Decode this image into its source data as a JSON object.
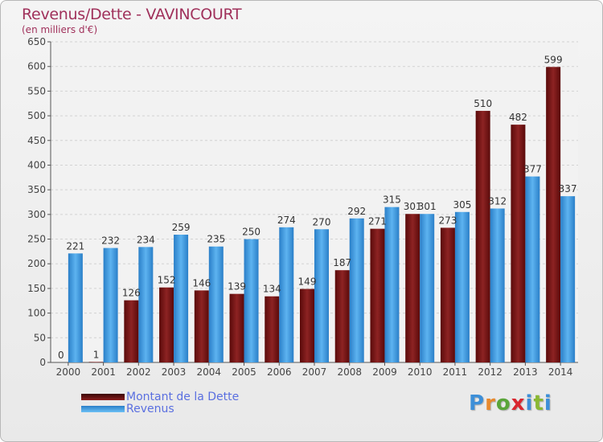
{
  "header": {
    "title": "Revenus/Dette - VAVINCOURT",
    "subtitle": "(en milliers d'€)"
  },
  "colors": {
    "dette": "#7a1414",
    "revenus": "#3d99e0",
    "title": "#a0315b",
    "legend_text": "#5a6fe0"
  },
  "logo": {
    "text": "Proxiti"
  },
  "chart_data": {
    "type": "bar",
    "title": "Revenus/Dette - VAVINCOURT",
    "ylabel": "(en milliers d'€)",
    "xlabel": "",
    "categories": [
      "2000",
      "2001",
      "2002",
      "2003",
      "2004",
      "2005",
      "2006",
      "2007",
      "2008",
      "2009",
      "2010",
      "2011",
      "2012",
      "2013",
      "2014"
    ],
    "series": [
      {
        "name": "Montant de la Dette",
        "color": "#7a1414",
        "values": [
          0,
          1,
          126,
          152,
          146,
          139,
          134,
          149,
          187,
          271,
          301,
          273,
          510,
          482,
          599
        ]
      },
      {
        "name": "Revenus",
        "color": "#3d99e0",
        "values": [
          221,
          232,
          234,
          259,
          235,
          250,
          274,
          270,
          292,
          315,
          301,
          305,
          312,
          377,
          337
        ]
      }
    ],
    "ylim": [
      0,
      650
    ],
    "yticks": [
      0,
      50,
      100,
      150,
      200,
      250,
      300,
      350,
      400,
      450,
      500,
      550,
      600,
      650
    ],
    "grid": true,
    "legend_position": "bottom-left"
  }
}
